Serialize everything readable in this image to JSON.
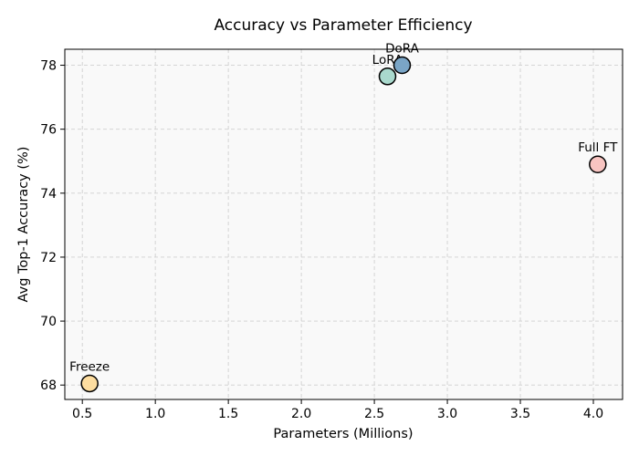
{
  "chart_data": {
    "type": "scatter",
    "title": "Accuracy vs Parameter Efficiency",
    "xlabel": "Parameters (Millions)",
    "ylabel": "Avg Top-1 Accuracy (%)",
    "xlim": [
      0.38,
      4.2
    ],
    "ylim": [
      67.55,
      78.5
    ],
    "xticks": [
      0.5,
      1.0,
      1.5,
      2.0,
      2.5,
      3.0,
      3.5,
      4.0
    ],
    "xtick_labels": [
      "0.5",
      "1.0",
      "1.5",
      "2.0",
      "2.5",
      "3.0",
      "3.5",
      "4.0"
    ],
    "yticks": [
      68,
      70,
      72,
      74,
      76,
      78
    ],
    "ytick_labels": [
      "68",
      "70",
      "72",
      "74",
      "76",
      "78"
    ],
    "grid": true,
    "points": [
      {
        "label": "Freeze",
        "x": 0.55,
        "y": 68.05,
        "color": "#fddda0"
      },
      {
        "label": "LoRA",
        "x": 2.59,
        "y": 77.65,
        "color": "#a9d9cd"
      },
      {
        "label": "DoRA",
        "x": 2.69,
        "y": 78.0,
        "color": "#7aa5c6"
      },
      {
        "label": "Full FT",
        "x": 4.03,
        "y": 74.9,
        "color": "#f8c4c1"
      }
    ]
  },
  "colors": {
    "plot_background": "#f9f9f9",
    "marker_edge": "#000000"
  }
}
